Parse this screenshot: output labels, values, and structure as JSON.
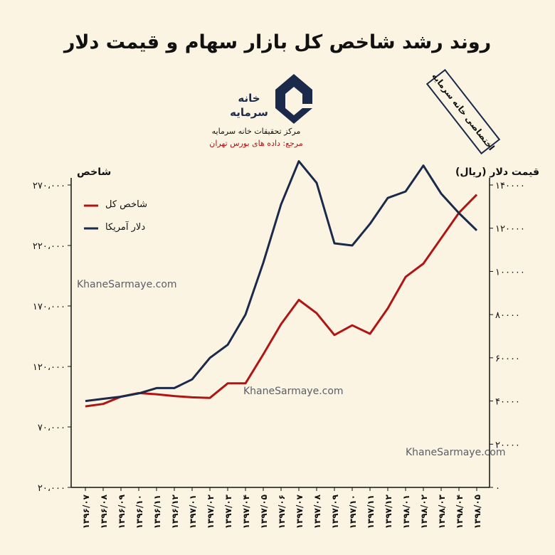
{
  "title": "روند رشد شاخص کل بازار سهام و قیمت دلار",
  "badge": "اختصاصی خانه سرمایه",
  "logo": {
    "line1": "خانه",
    "line2": "سرمایه"
  },
  "source": {
    "line1": "مرکز تحقیقات خانه سرمایه",
    "line2": "مرجع: داده های بورس تهران"
  },
  "watermarks": [
    "KhaneSarmaye.com",
    "KhaneSarmaye.com",
    "KhaneSarmaye.com"
  ],
  "colors": {
    "index": "#b01515",
    "dollar": "#1b2a4a",
    "axis": "#111111",
    "background": "#fbf4e2"
  },
  "chart_data": {
    "type": "line",
    "title": "روند رشد شاخص کل بازار سهام و قیمت دلار",
    "categories": [
      "۱۳۹۶/۰۷",
      "۱۳۹۶/۰۸",
      "۱۳۹۶/۰۹",
      "۱۳۹۶/۱۰",
      "۱۳۹۶/۱۱",
      "۱۳۹۶/۱۲",
      "۱۳۹۷/۰۱",
      "۱۳۹۷/۰۲",
      "۱۳۹۷/۰۳",
      "۱۳۹۷/۰۴",
      "۱۳۹۷/۰۵",
      "۱۳۹۷/۰۶",
      "۱۳۹۷/۰۷",
      "۱۳۹۷/۰۸",
      "۱۳۹۷/۰۹",
      "۱۳۹۷/۱۰",
      "۱۳۹۷/۱۱",
      "۱۳۹۷/۱۲",
      "۱۳۹۸/۰۱",
      "۱۳۹۸/۰۲",
      "۱۳۹۸/۰۳",
      "۱۳۹۸/۰۴",
      "۱۳۹۸/۰۵"
    ],
    "left_axis": {
      "label": "شاخص",
      "ylim": [
        20000,
        270000
      ],
      "ticks": [
        20000,
        70000,
        120000,
        170000,
        220000,
        270000
      ],
      "tick_labels": [
        "۲۰،۰۰۰",
        "۷۰،۰۰۰",
        "۱۲۰،۰۰۰",
        "۱۷۰،۰۰۰",
        "۲۲۰،۰۰۰",
        "۲۷۰،۰۰۰"
      ]
    },
    "right_axis": {
      "label": "قیمت دلار (ریال)",
      "ylim": [
        0,
        140000
      ],
      "ticks": [
        0,
        20000,
        40000,
        60000,
        80000,
        100000,
        120000,
        140000
      ],
      "tick_labels": [
        "۰",
        "۲۰۰۰۰",
        "۴۰۰۰۰",
        "۶۰۰۰۰",
        "۸۰۰۰۰",
        "۱۰۰۰۰۰",
        "۱۲۰۰۰۰",
        "۱۴۰۰۰۰"
      ]
    },
    "series": [
      {
        "name": "شاخص کل",
        "axis": "left",
        "values": [
          87000,
          89000,
          95000,
          98000,
          97000,
          95500,
          94500,
          94000,
          106000,
          106000,
          130000,
          155000,
          175000,
          164000,
          146000,
          154000,
          147000,
          168000,
          194000,
          205000,
          226000,
          247000,
          262000
        ]
      },
      {
        "name": "دلار آمریکا",
        "axis": "right",
        "values": [
          40000,
          41000,
          42000,
          43500,
          46000,
          46000,
          50000,
          60000,
          66000,
          80000,
          104000,
          131000,
          151000,
          141000,
          113000,
          112000,
          122000,
          134000,
          137000,
          149000,
          136000,
          127000,
          119000
        ]
      }
    ],
    "legend": "top-left",
    "grid": false
  }
}
